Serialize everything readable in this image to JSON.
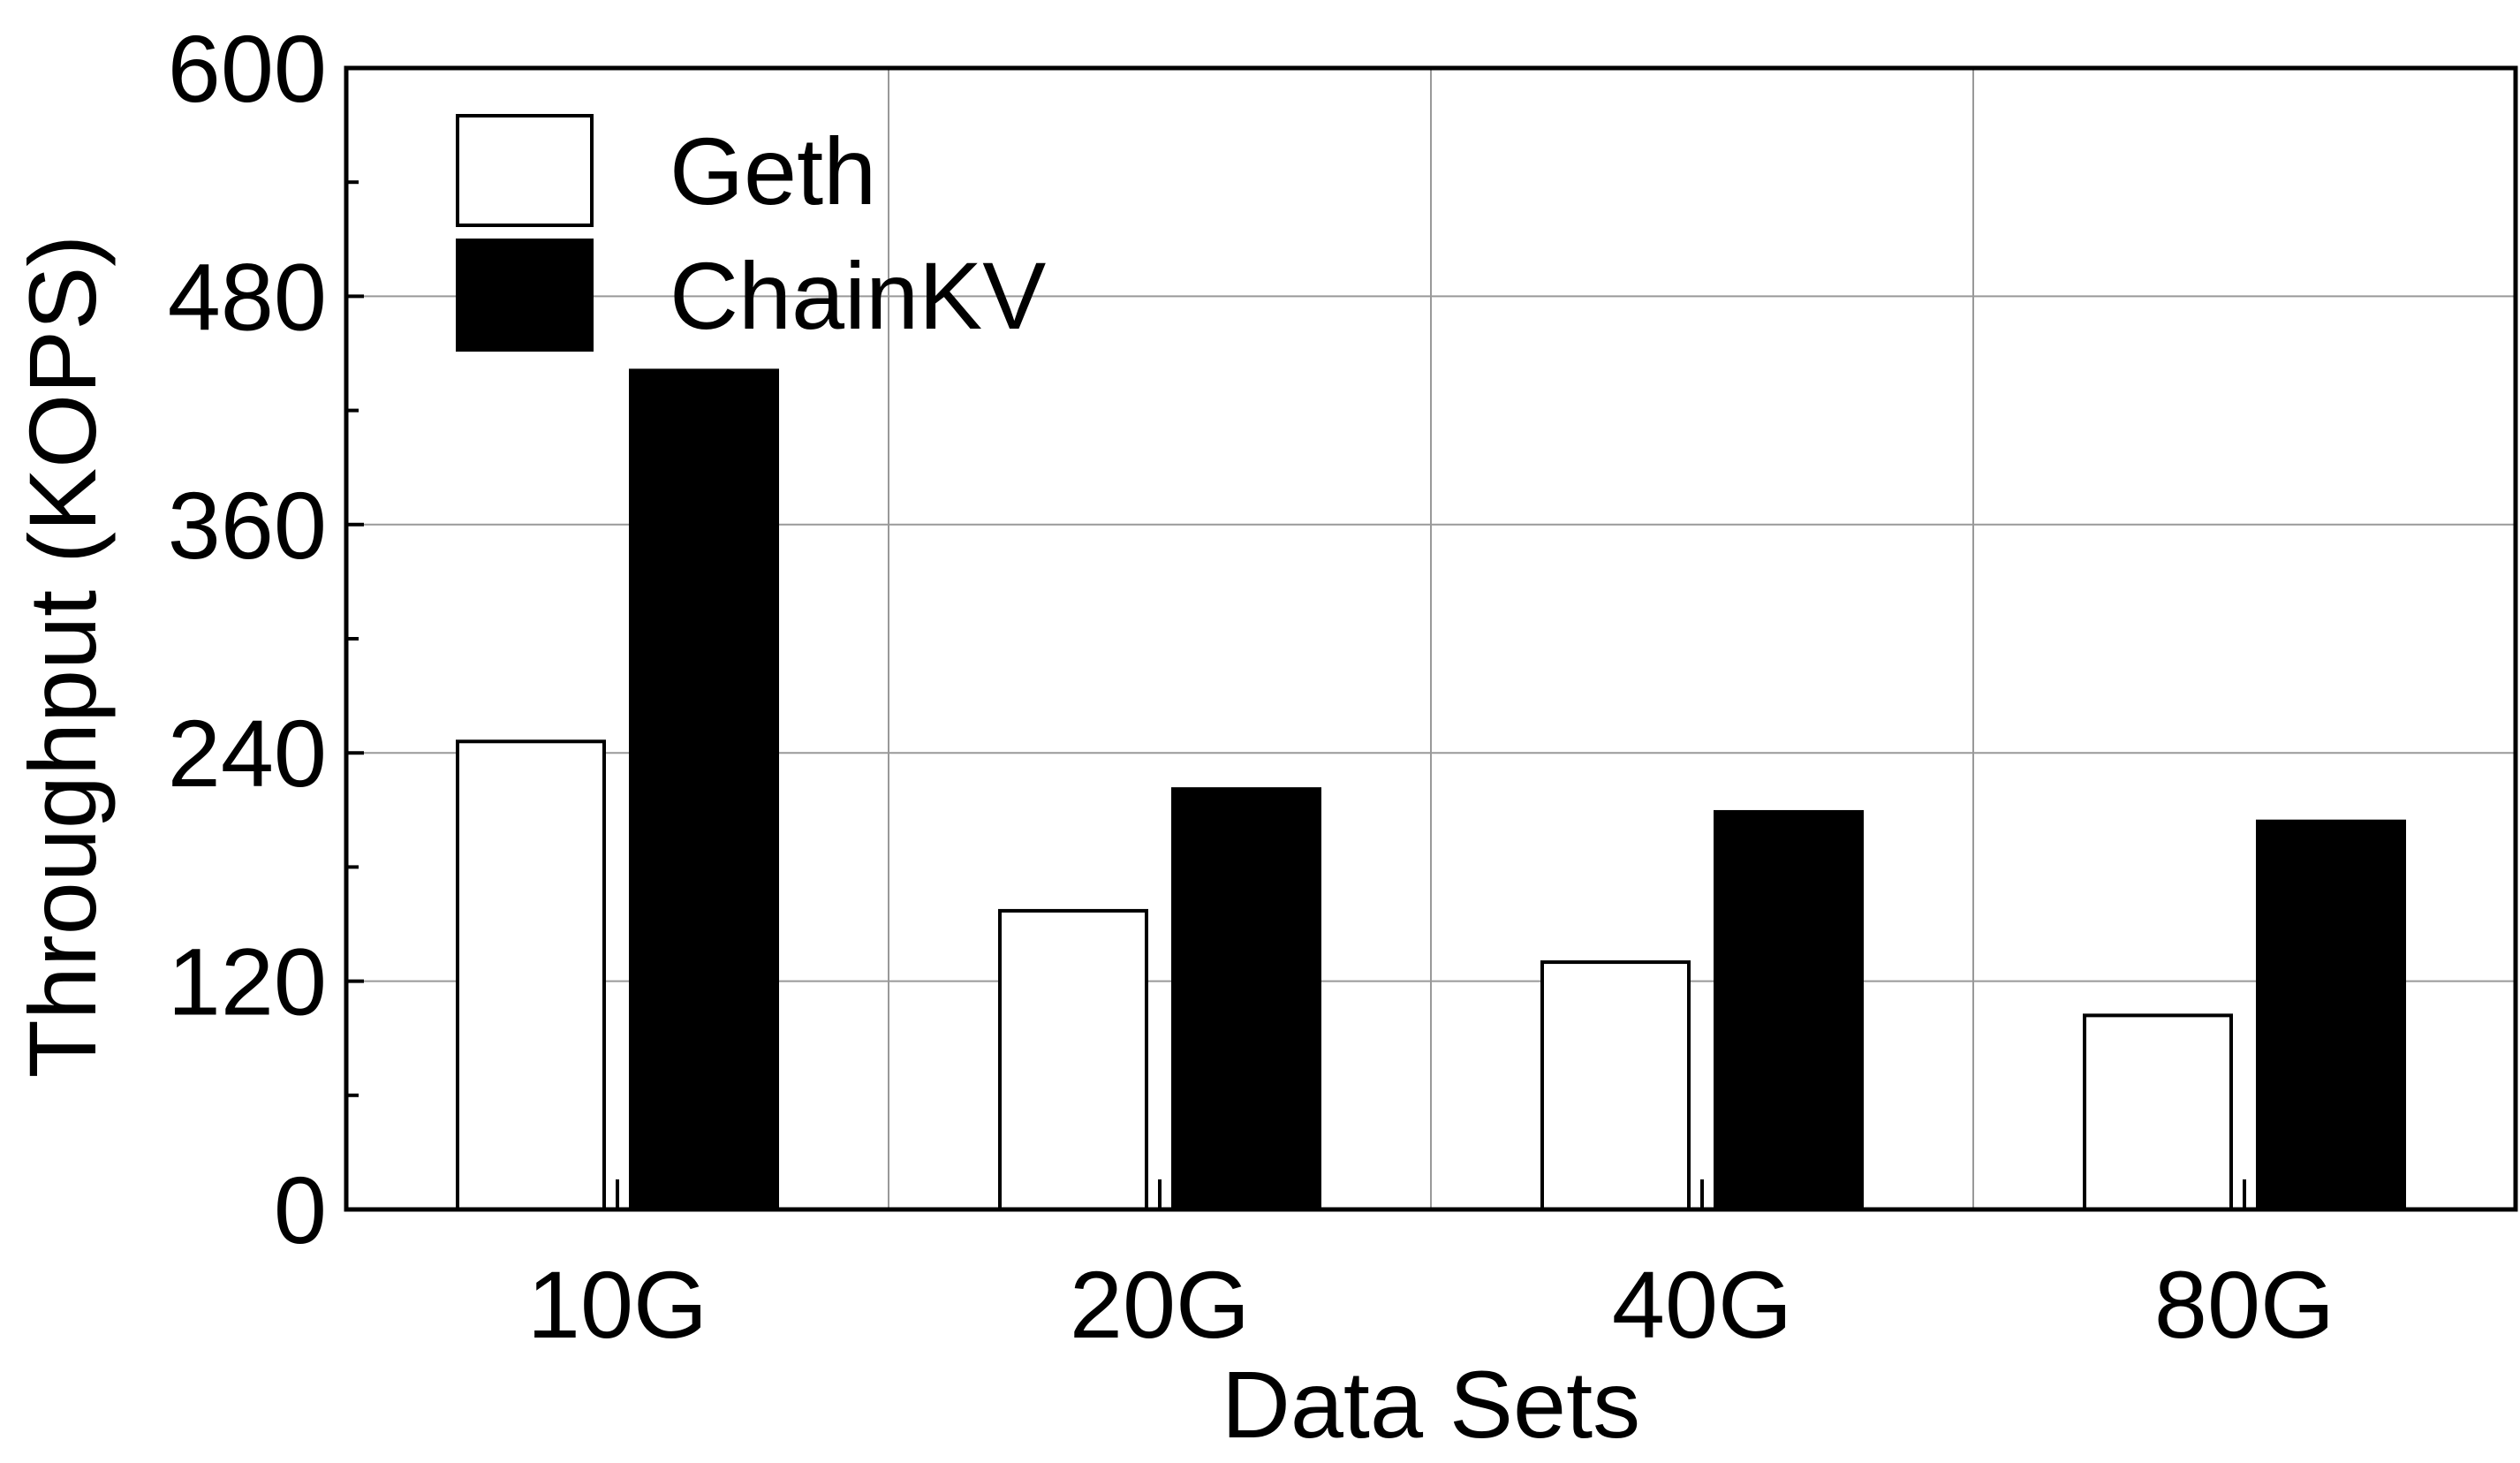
{
  "chart_data": {
    "type": "bar",
    "xlabel": "Data Sets",
    "ylabel": "Throughput (KOPS)",
    "categories": [
      "10G",
      "20G",
      "40G",
      "80G"
    ],
    "series": [
      {
        "name": "Geth",
        "values": [
          246,
          157,
          130,
          102
        ],
        "fill": "#ffffff",
        "stroke": "#000000"
      },
      {
        "name": "ChainKV",
        "values": [
          441,
          221,
          209,
          204
        ],
        "fill": "#000000",
        "stroke": "#000000"
      }
    ],
    "ylim": [
      0,
      600
    ],
    "yticks": [
      0,
      120,
      240,
      360,
      480,
      600
    ],
    "grid": true,
    "legend_position": "top-left"
  }
}
